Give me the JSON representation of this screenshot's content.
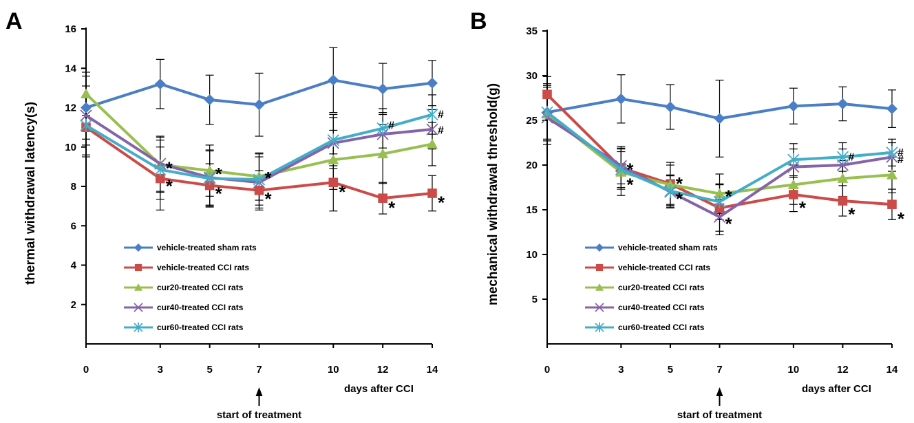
{
  "colors": {
    "vehicle_sham": "#4a7ec5",
    "vehicle_cci": "#cc4a47",
    "cur20": "#98bf4f",
    "cur40": "#8563a8",
    "cur60": "#44adc8"
  },
  "chart_data": [
    {
      "type": "line",
      "panel": "A",
      "ylabel": "thermal withdrawal latency(s)",
      "xlabel": "days after CCI",
      "annotation": "start of treatment",
      "annotation_x": 7,
      "x": [
        0,
        3,
        5,
        7,
        10,
        12,
        14
      ],
      "ylim": [
        0,
        16
      ],
      "yticks": [
        2,
        4,
        6,
        8,
        10,
        12,
        14,
        16
      ],
      "grid": false,
      "legend_position": "bottom-left",
      "series": [
        {
          "name": "vehicle-treated sham rats",
          "color_key": "vehicle_sham",
          "marker": "diamond",
          "values": [
            12.0,
            13.2,
            12.4,
            12.15,
            13.4,
            12.95,
            13.25
          ],
          "errors": [
            1.6,
            1.25,
            1.25,
            1.6,
            1.65,
            1.3,
            1.15
          ]
        },
        {
          "name": "vehicle-treated CCI rats",
          "color_key": "vehicle_cci",
          "marker": "square",
          "values": [
            11.0,
            8.4,
            8.05,
            7.8,
            8.2,
            7.4,
            7.65
          ],
          "errors": [
            1.5,
            1.6,
            1.1,
            1.0,
            1.45,
            0.8,
            0.9
          ]
        },
        {
          "name": "cur20-treated CCI rats",
          "color_key": "cur20",
          "marker": "triangle",
          "values": [
            12.7,
            9.1,
            8.8,
            8.5,
            9.35,
            9.65,
            10.15
          ],
          "errors": [
            1.1,
            1.4,
            1.3,
            1.2,
            1.5,
            1.5,
            1.1
          ]
        },
        {
          "name": "cur40-treated CCI rats",
          "color_key": "cur40",
          "marker": "x",
          "values": [
            11.6,
            9.15,
            8.45,
            8.2,
            10.2,
            10.65,
            10.9
          ],
          "errors": [
            1.5,
            1.4,
            1.4,
            1.3,
            1.3,
            1.1,
            1.0
          ]
        },
        {
          "name": "cur60-treated CCI rats",
          "color_key": "cur60",
          "marker": "asterisk",
          "values": [
            11.1,
            8.85,
            8.4,
            8.35,
            10.35,
            10.95,
            11.65
          ],
          "errors": [
            1.5,
            1.5,
            1.4,
            1.3,
            1.3,
            1.0,
            1.0
          ]
        }
      ],
      "markers": [
        {
          "text": "*",
          "x": 3,
          "y": 9.1,
          "type": "star"
        },
        {
          "text": "*",
          "x": 3,
          "y": 8.2,
          "type": "star"
        },
        {
          "text": "*",
          "x": 5,
          "y": 8.8,
          "type": "star"
        },
        {
          "text": "*",
          "x": 5,
          "y": 7.8,
          "type": "star"
        },
        {
          "text": "*",
          "x": 7,
          "y": 8.6,
          "type": "star"
        },
        {
          "text": "*",
          "x": 7,
          "y": 7.55,
          "type": "star"
        },
        {
          "text": "*",
          "x": 10,
          "y": 7.9,
          "type": "star"
        },
        {
          "text": "*",
          "x": 12,
          "y": 7.1,
          "type": "star"
        },
        {
          "text": "*",
          "x": 14,
          "y": 7.35,
          "type": "star"
        },
        {
          "text": "#",
          "x": 12,
          "y": 11.1,
          "type": "hash"
        },
        {
          "text": "#",
          "x": 14,
          "y": 11.65,
          "type": "hash"
        },
        {
          "text": "#",
          "x": 14,
          "y": 10.85,
          "type": "hash"
        }
      ]
    },
    {
      "type": "line",
      "panel": "B",
      "ylabel": "mechanical withdrawal threshold(g)",
      "xlabel": "days after CCI",
      "annotation": "start of treatment",
      "annotation_x": 7,
      "x": [
        0,
        3,
        5,
        7,
        10,
        12,
        14
      ],
      "ylim": [
        0,
        35
      ],
      "yticks": [
        5,
        10,
        15,
        20,
        25,
        30,
        35
      ],
      "grid": false,
      "legend_position": "bottom-left",
      "series": [
        {
          "name": "vehicle-treated sham rats",
          "color_key": "vehicle_sham",
          "marker": "diamond",
          "values": [
            25.9,
            27.4,
            26.5,
            25.2,
            26.6,
            26.85,
            26.3
          ],
          "errors": [
            3.2,
            2.7,
            2.5,
            4.3,
            2.0,
            1.9,
            2.1
          ]
        },
        {
          "name": "vehicle-treated CCI rats",
          "color_key": "vehicle_cci",
          "marker": "square",
          "values": [
            27.9,
            19.7,
            17.9,
            15.2,
            16.7,
            16.0,
            15.6
          ],
          "errors": [
            2.0,
            2.4,
            2.4,
            2.6,
            1.9,
            1.7,
            1.7
          ]
        },
        {
          "name": "cur20-treated CCI rats",
          "color_key": "cur20",
          "marker": "triangle",
          "values": [
            25.7,
            19.2,
            17.8,
            16.8,
            17.8,
            18.5,
            18.9
          ],
          "errors": [
            3.0,
            2.6,
            2.2,
            2.2,
            2.2,
            2.0,
            2.0
          ]
        },
        {
          "name": "cur40-treated CCI rats",
          "color_key": "cur40",
          "marker": "x",
          "values": [
            25.3,
            19.9,
            17.0,
            14.2,
            19.8,
            20.0,
            20.9
          ],
          "errors": [
            3.0,
            2.0,
            1.8,
            2.0,
            2.0,
            1.8,
            1.6
          ]
        },
        {
          "name": "cur60-treated CCI rats",
          "color_key": "cur60",
          "marker": "asterisk",
          "values": [
            25.9,
            19.5,
            17.1,
            15.9,
            20.6,
            20.9,
            21.4
          ],
          "errors": [
            3.0,
            2.0,
            1.8,
            2.0,
            1.8,
            1.6,
            1.5
          ]
        }
      ],
      "markers": [
        {
          "text": "*",
          "x": 3,
          "y": 19.9,
          "type": "star"
        },
        {
          "text": "*",
          "x": 3,
          "y": 18.2,
          "type": "star"
        },
        {
          "text": "*",
          "x": 5,
          "y": 18.3,
          "type": "star"
        },
        {
          "text": "*",
          "x": 5,
          "y": 16.6,
          "type": "star"
        },
        {
          "text": "*",
          "x": 7,
          "y": 16.9,
          "type": "star"
        },
        {
          "text": "*",
          "x": 7,
          "y": 13.8,
          "type": "star"
        },
        {
          "text": "*",
          "x": 10,
          "y": 15.6,
          "type": "star"
        },
        {
          "text": "*",
          "x": 12,
          "y": 14.9,
          "type": "star"
        },
        {
          "text": "*",
          "x": 14,
          "y": 14.4,
          "type": "star"
        },
        {
          "text": "#",
          "x": 12,
          "y": 20.9,
          "type": "hash"
        },
        {
          "text": "#",
          "x": 14,
          "y": 21.4,
          "type": "hash"
        },
        {
          "text": "#",
          "x": 14,
          "y": 20.6,
          "type": "hash"
        }
      ]
    }
  ]
}
